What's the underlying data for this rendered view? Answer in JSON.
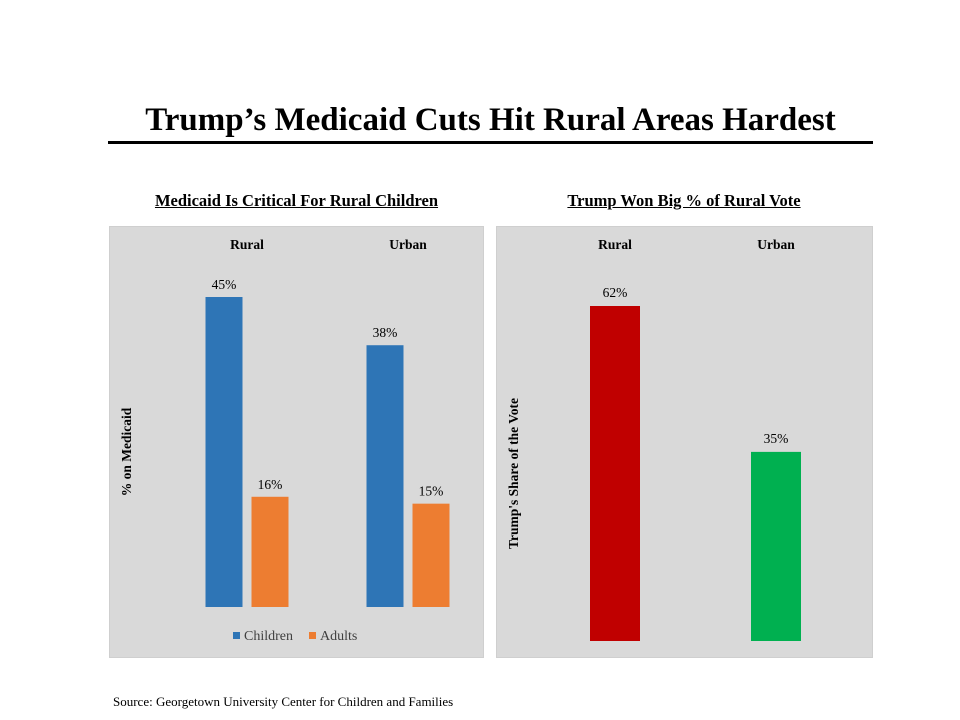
{
  "title": "Trump’s Medicaid Cuts Hit Rural Areas Hardest",
  "source": "Source: Georgetown University Center for Children and Families",
  "chart_data": [
    {
      "type": "bar",
      "title": "Medicaid Is Critical For Rural Children",
      "ylabel": "% on Medicaid",
      "categories": [
        "Rural",
        "Urban"
      ],
      "series": [
        {
          "name": "Children",
          "values": [
            45,
            38
          ],
          "color": "#2e75b6"
        },
        {
          "name": "Adults",
          "values": [
            16,
            15
          ],
          "color": "#ed7d31"
        }
      ],
      "data_labels": [
        [
          "45%",
          "38%"
        ],
        [
          "16%",
          "15%"
        ]
      ],
      "ylim": [
        0,
        45
      ],
      "grid": false,
      "legend": "bottom-center"
    },
    {
      "type": "bar",
      "title": "Trump  Won Big % of Rural Vote",
      "ylabel": "Trump's Share of the Vote",
      "categories": [
        "Rural",
        "Urban"
      ],
      "values": [
        62,
        35
      ],
      "colors": [
        "#c00000",
        "#00b050"
      ],
      "data_labels": [
        "62%",
        "35%"
      ],
      "ylim": [
        0,
        62
      ],
      "grid": false,
      "legend": "none"
    }
  ]
}
